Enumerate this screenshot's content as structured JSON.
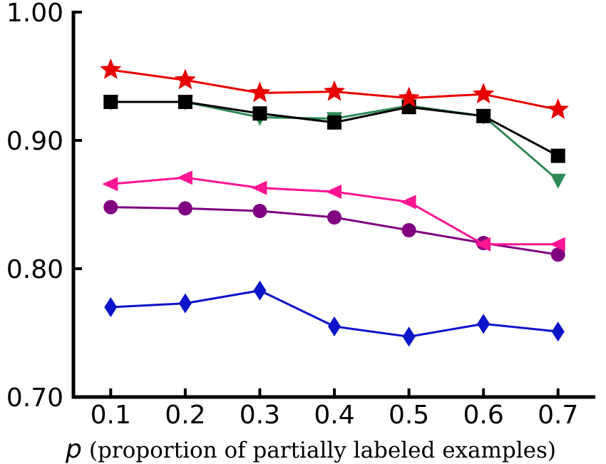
{
  "chart_data": {
    "type": "line",
    "title": "",
    "xlabel_symbol": "p",
    "xlabel_text": "(proportion of partially labeled examples)",
    "ylabel": "",
    "x": [
      0.1,
      0.2,
      0.3,
      0.4,
      0.5,
      0.6,
      0.7
    ],
    "x_tick_labels": [
      "0.1",
      "0.2",
      "0.3",
      "0.4",
      "0.5",
      "0.6",
      "0.7"
    ],
    "xlim": [
      0.05,
      0.75
    ],
    "ylim": [
      0.7,
      1.0
    ],
    "y_ticks": [
      0.7,
      0.8,
      0.9,
      1.0
    ],
    "y_tick_labels": [
      "0.70",
      "0.80",
      "0.90",
      "1.00"
    ],
    "grid": false,
    "legend": "none",
    "series": [
      {
        "marker": "diamond",
        "color": "#0a14c8",
        "values": [
          0.77,
          0.773,
          0.783,
          0.755,
          0.747,
          0.757,
          0.751
        ]
      },
      {
        "marker": "circle",
        "color": "#800080",
        "values": [
          0.848,
          0.847,
          0.845,
          0.84,
          0.83,
          0.82,
          0.811
        ]
      },
      {
        "marker": "triangle-left",
        "color": "#ff1493",
        "values": [
          0.866,
          0.871,
          0.863,
          0.86,
          0.852,
          0.819,
          0.819
        ]
      },
      {
        "marker": "triangle-down",
        "color": "#2e8b57",
        "values": [
          0.93,
          0.93,
          0.918,
          0.917,
          0.927,
          0.919,
          0.869
        ]
      },
      {
        "marker": "square",
        "color": "#000000",
        "values": [
          0.93,
          0.93,
          0.921,
          0.914,
          0.926,
          0.919,
          0.888
        ]
      },
      {
        "marker": "star",
        "color": "#e80000",
        "values": [
          0.955,
          0.947,
          0.937,
          0.938,
          0.933,
          0.936,
          0.924
        ]
      }
    ]
  }
}
